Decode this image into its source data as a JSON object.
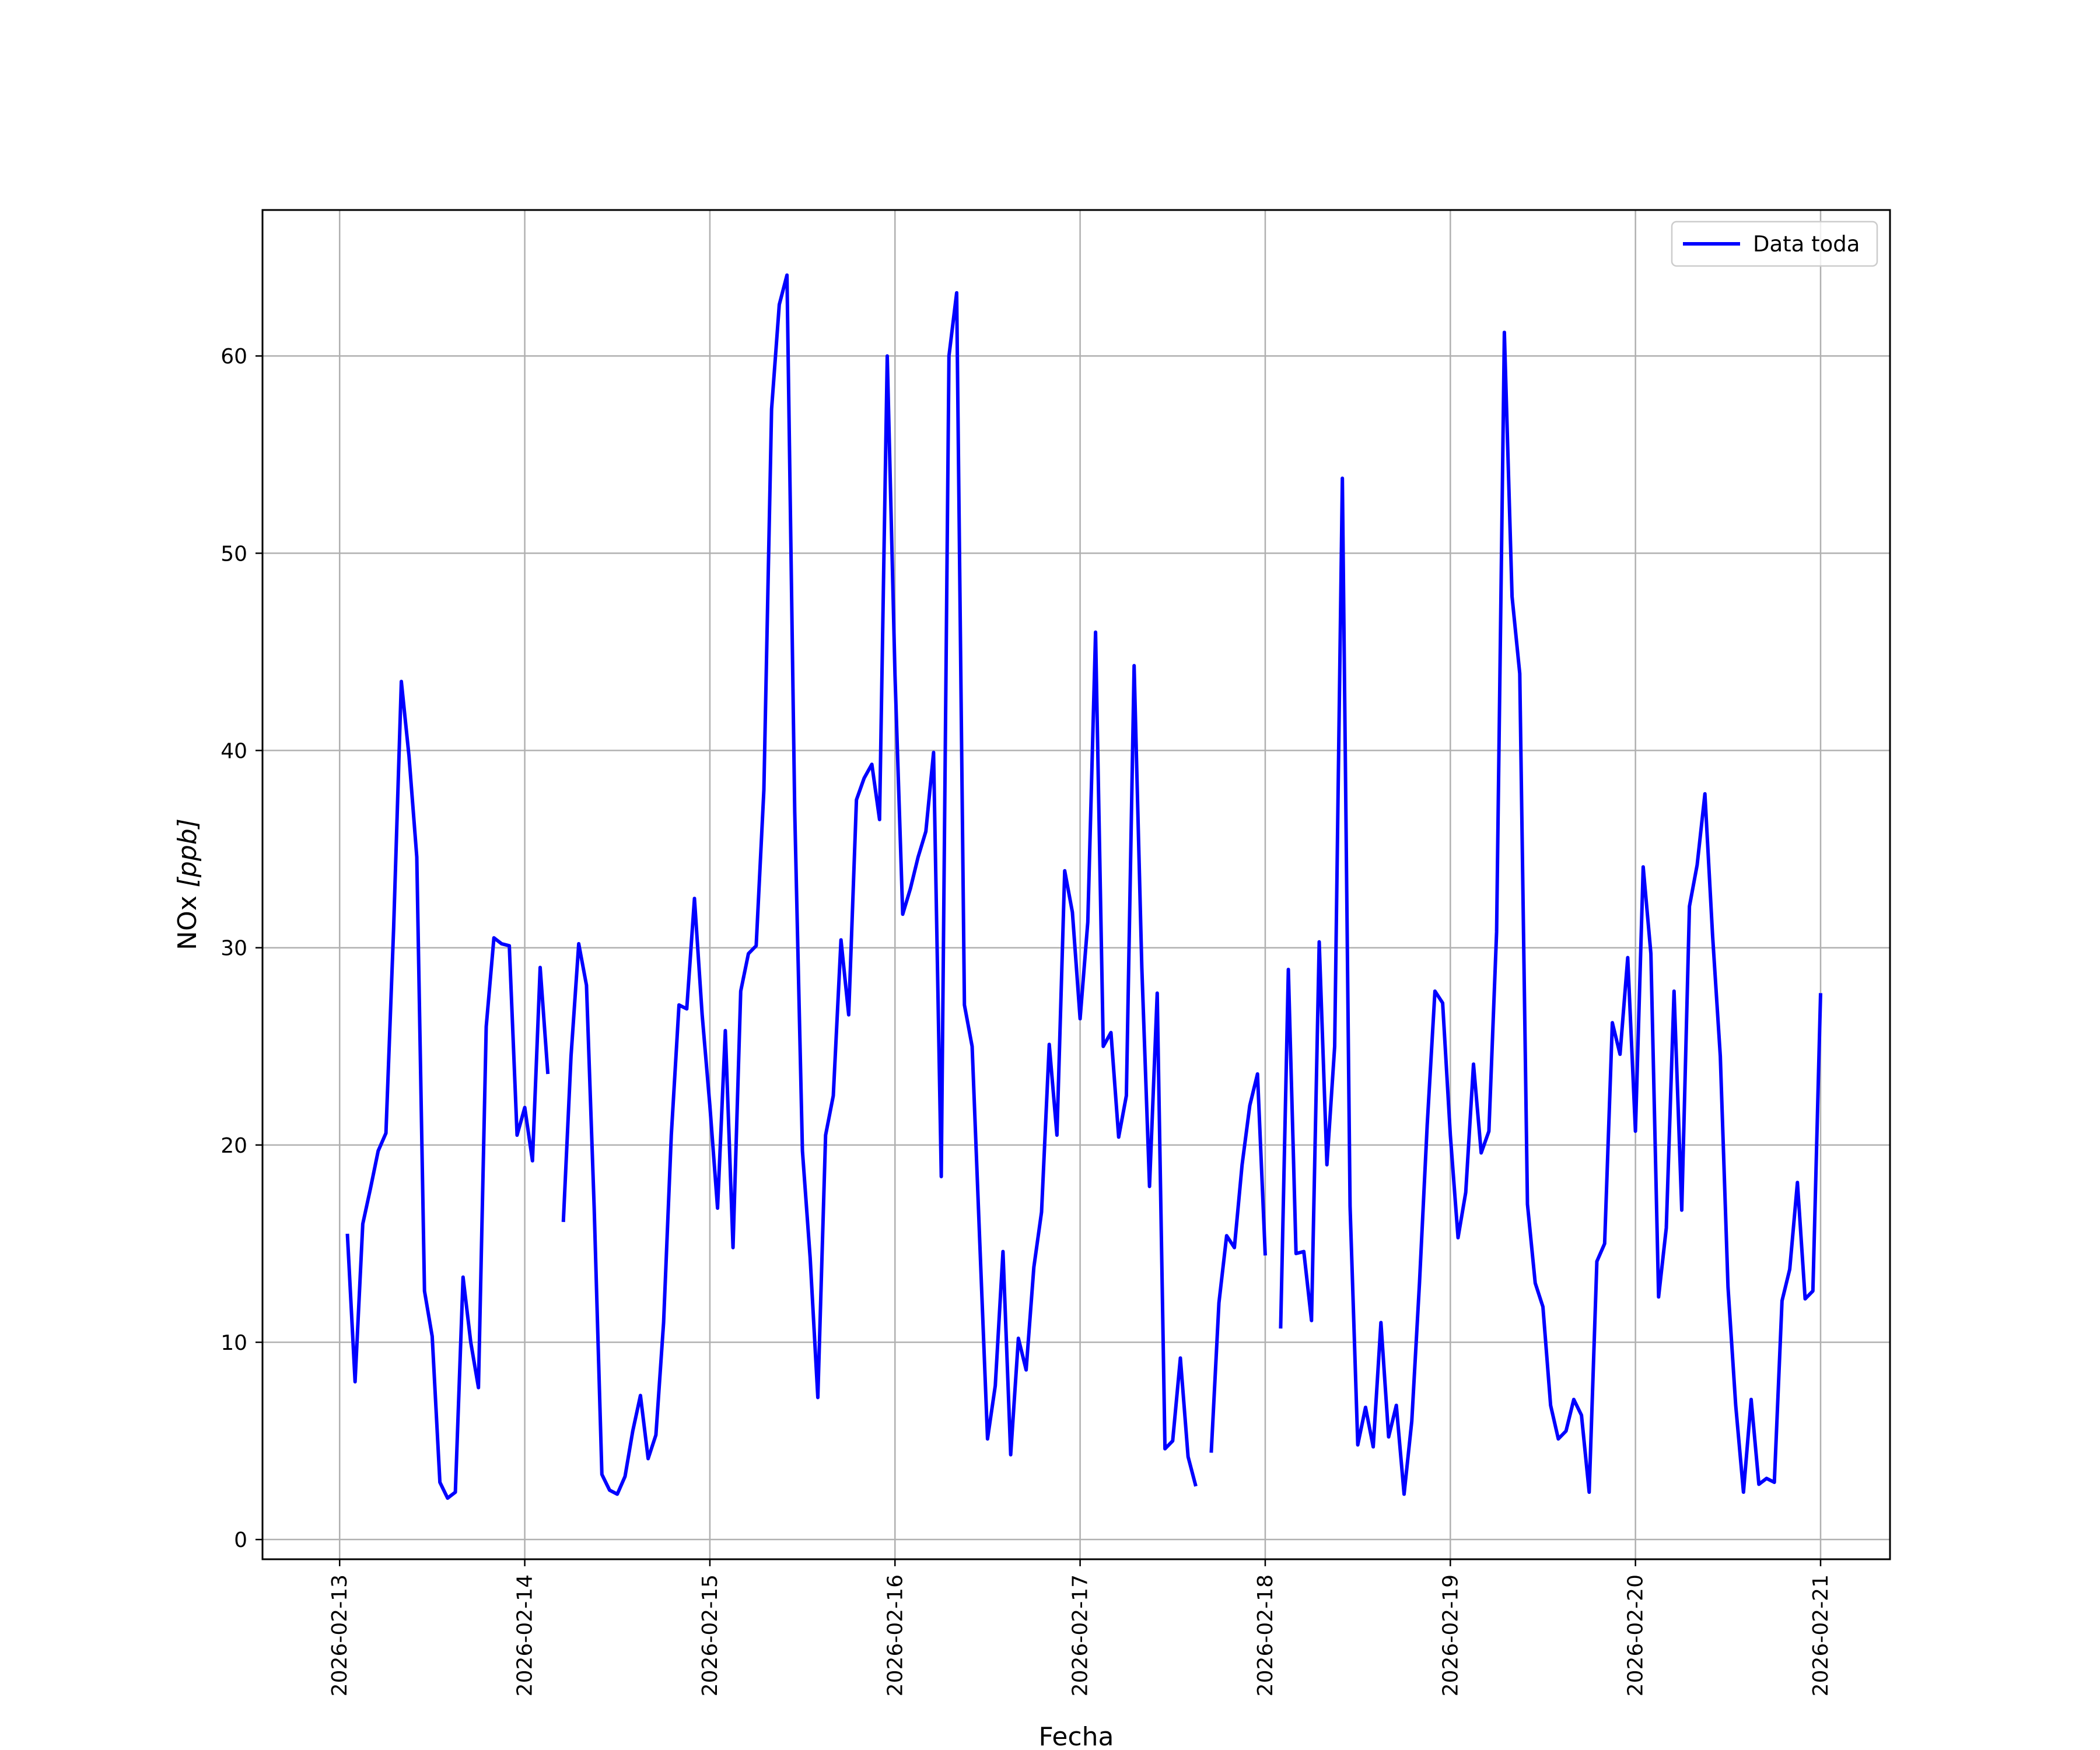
{
  "chart_data": {
    "type": "line",
    "xlabel": "Fecha",
    "ylabel_prefix": "NOx ",
    "ylabel_unit": "[ppb]",
    "x_ticks": [
      "2026-02-13",
      "2026-02-14",
      "2026-02-15",
      "2026-02-16",
      "2026-02-17",
      "2026-02-18",
      "2026-02-19",
      "2026-02-20",
      "2026-02-21"
    ],
    "y_ticks": [
      0,
      10,
      20,
      30,
      40,
      50,
      60
    ],
    "xlim": [
      "2026-02-12T14:00",
      "2026-02-21T09:00"
    ],
    "ylim": [
      -1,
      67.4
    ],
    "grid": true,
    "legend": {
      "position": "top-right",
      "entries": [
        "Data toda"
      ]
    },
    "series": [
      {
        "name": "Data toda",
        "color": "#0000ff",
        "points": [
          [
            "2026-02-13T01:00",
            15.5
          ],
          [
            "2026-02-13T02:00",
            8.0
          ],
          [
            "2026-02-13T03:00",
            16.0
          ],
          [
            "2026-02-13T04:00",
            17.8
          ],
          [
            "2026-02-13T05:00",
            19.7
          ],
          [
            "2026-02-13T06:00",
            20.6
          ],
          [
            "2026-02-13T07:00",
            31.0
          ],
          [
            "2026-02-13T08:00",
            43.5
          ],
          [
            "2026-02-13T09:00",
            39.7
          ],
          [
            "2026-02-13T10:00",
            34.6
          ],
          [
            "2026-02-13T11:00",
            12.6
          ],
          [
            "2026-02-13T12:00",
            10.3
          ],
          [
            "2026-02-13T13:00",
            2.9
          ],
          [
            "2026-02-13T14:00",
            2.1
          ],
          [
            "2026-02-13T15:00",
            2.4
          ],
          [
            "2026-02-13T16:00",
            13.3
          ],
          [
            "2026-02-13T17:00",
            10.0
          ],
          [
            "2026-02-13T18:00",
            7.7
          ],
          [
            "2026-02-13T19:00",
            26.0
          ],
          [
            "2026-02-13T20:00",
            30.5
          ],
          [
            "2026-02-13T21:00",
            30.2
          ],
          [
            "2026-02-13T22:00",
            30.1
          ],
          [
            "2026-02-13T23:00",
            20.5
          ],
          [
            "2026-02-14T00:00",
            21.9
          ],
          [
            "2026-02-14T01:00",
            19.2
          ],
          [
            "2026-02-14T02:00",
            29.0
          ],
          [
            "2026-02-14T03:00",
            23.6
          ],
          null,
          [
            "2026-02-14T05:00",
            16.1
          ],
          [
            "2026-02-14T06:00",
            24.5
          ],
          [
            "2026-02-14T07:00",
            30.2
          ],
          [
            "2026-02-14T08:00",
            28.1
          ],
          [
            "2026-02-14T09:00",
            16.8
          ],
          [
            "2026-02-14T10:00",
            3.3
          ],
          [
            "2026-02-14T11:00",
            2.5
          ],
          [
            "2026-02-14T12:00",
            2.3
          ],
          [
            "2026-02-14T13:00",
            3.2
          ],
          [
            "2026-02-14T14:00",
            5.5
          ],
          [
            "2026-02-14T15:00",
            7.3
          ],
          [
            "2026-02-14T16:00",
            4.1
          ],
          [
            "2026-02-14T17:00",
            5.3
          ],
          [
            "2026-02-14T18:00",
            11.0
          ],
          [
            "2026-02-14T19:00",
            20.5
          ],
          [
            "2026-02-14T20:00",
            27.1
          ],
          [
            "2026-02-14T21:00",
            26.9
          ],
          [
            "2026-02-14T22:00",
            32.5
          ],
          [
            "2026-02-14T23:00",
            26.6
          ],
          [
            "2026-02-15T00:00",
            22.0
          ],
          [
            "2026-02-15T01:00",
            16.8
          ],
          [
            "2026-02-15T02:00",
            25.8
          ],
          [
            "2026-02-15T03:00",
            14.8
          ],
          [
            "2026-02-15T04:00",
            27.8
          ],
          [
            "2026-02-15T05:00",
            29.7
          ],
          [
            "2026-02-15T06:00",
            30.1
          ],
          [
            "2026-02-15T07:00",
            38.0
          ],
          [
            "2026-02-15T08:00",
            57.3
          ],
          [
            "2026-02-15T09:00",
            62.6
          ],
          [
            "2026-02-15T10:00",
            64.1
          ],
          [
            "2026-02-15T11:00",
            36.9
          ],
          [
            "2026-02-15T12:00",
            19.7
          ],
          [
            "2026-02-15T13:00",
            14.3
          ],
          [
            "2026-02-15T14:00",
            7.2
          ],
          [
            "2026-02-15T15:00",
            20.5
          ],
          [
            "2026-02-15T16:00",
            22.5
          ],
          [
            "2026-02-15T17:00",
            30.4
          ],
          [
            "2026-02-15T18:00",
            26.6
          ],
          [
            "2026-02-15T19:00",
            37.5
          ],
          [
            "2026-02-15T20:00",
            38.6
          ],
          [
            "2026-02-15T21:00",
            39.3
          ],
          [
            "2026-02-15T22:00",
            36.5
          ],
          [
            "2026-02-15T23:00",
            60.0
          ],
          [
            "2026-02-16T00:00",
            43.8
          ],
          [
            "2026-02-16T01:00",
            31.7
          ],
          [
            "2026-02-16T02:00",
            33.0
          ],
          [
            "2026-02-16T03:00",
            34.6
          ],
          [
            "2026-02-16T04:00",
            35.9
          ],
          [
            "2026-02-16T05:00",
            39.9
          ],
          [
            "2026-02-16T06:00",
            18.4
          ],
          [
            "2026-02-16T07:00",
            60.0
          ],
          [
            "2026-02-16T08:00",
            63.2
          ],
          [
            "2026-02-16T09:00",
            27.1
          ],
          [
            "2026-02-16T10:00",
            25.0
          ],
          [
            "2026-02-16T11:00",
            15.0
          ],
          [
            "2026-02-16T12:00",
            5.1
          ],
          [
            "2026-02-16T13:00",
            7.8
          ],
          [
            "2026-02-16T14:00",
            14.6
          ],
          [
            "2026-02-16T15:00",
            4.3
          ],
          [
            "2026-02-16T16:00",
            10.2
          ],
          [
            "2026-02-16T17:00",
            8.6
          ],
          [
            "2026-02-16T18:00",
            13.8
          ],
          [
            "2026-02-16T19:00",
            16.6
          ],
          [
            "2026-02-16T20:00",
            25.1
          ],
          [
            "2026-02-16T21:00",
            20.5
          ],
          [
            "2026-02-16T22:00",
            33.9
          ],
          [
            "2026-02-16T23:00",
            31.8
          ],
          [
            "2026-02-17T00:00",
            26.4
          ],
          [
            "2026-02-17T01:00",
            31.3
          ],
          [
            "2026-02-17T02:00",
            46.0
          ],
          [
            "2026-02-17T03:00",
            25.0
          ],
          [
            "2026-02-17T04:00",
            25.7
          ],
          [
            "2026-02-17T05:00",
            20.4
          ],
          [
            "2026-02-17T06:00",
            22.5
          ],
          [
            "2026-02-17T07:00",
            44.3
          ],
          [
            "2026-02-17T08:00",
            29.0
          ],
          [
            "2026-02-17T09:00",
            17.9
          ],
          [
            "2026-02-17T10:00",
            27.7
          ],
          [
            "2026-02-17T11:00",
            4.6
          ],
          [
            "2026-02-17T12:00",
            5.0
          ],
          [
            "2026-02-17T13:00",
            9.2
          ],
          [
            "2026-02-17T14:00",
            4.2
          ],
          [
            "2026-02-17T15:00",
            2.7
          ],
          null,
          [
            "2026-02-17T17:00",
            4.4
          ],
          [
            "2026-02-17T18:00",
            12.0
          ],
          [
            "2026-02-17T19:00",
            15.4
          ],
          [
            "2026-02-17T20:00",
            14.8
          ],
          [
            "2026-02-17T21:00",
            19.0
          ],
          [
            "2026-02-17T22:00",
            22.0
          ],
          [
            "2026-02-17T23:00",
            23.6
          ],
          [
            "2026-02-18T00:00",
            14.4
          ],
          null,
          [
            "2026-02-18T02:00",
            10.7
          ],
          [
            "2026-02-18T03:00",
            28.9
          ],
          [
            "2026-02-18T04:00",
            14.5
          ],
          [
            "2026-02-18T05:00",
            14.6
          ],
          [
            "2026-02-18T06:00",
            11.1
          ],
          [
            "2026-02-18T07:00",
            30.3
          ],
          [
            "2026-02-18T08:00",
            19.0
          ],
          [
            "2026-02-18T09:00",
            25.0
          ],
          [
            "2026-02-18T10:00",
            53.8
          ],
          [
            "2026-02-18T11:00",
            16.9
          ],
          [
            "2026-02-18T12:00",
            4.8
          ],
          [
            "2026-02-18T13:00",
            6.7
          ],
          [
            "2026-02-18T14:00",
            4.7
          ],
          [
            "2026-02-18T15:00",
            11.0
          ],
          [
            "2026-02-18T16:00",
            5.2
          ],
          [
            "2026-02-18T17:00",
            6.8
          ],
          [
            "2026-02-18T18:00",
            2.3
          ],
          [
            "2026-02-18T19:00",
            6.0
          ],
          [
            "2026-02-18T20:00",
            13.0
          ],
          [
            "2026-02-18T21:00",
            21.0
          ],
          [
            "2026-02-18T22:00",
            27.8
          ],
          [
            "2026-02-18T23:00",
            27.2
          ],
          [
            "2026-02-19T00:00",
            20.5
          ],
          [
            "2026-02-19T01:00",
            15.3
          ],
          [
            "2026-02-19T02:00",
            17.6
          ],
          [
            "2026-02-19T03:00",
            24.1
          ],
          [
            "2026-02-19T04:00",
            19.6
          ],
          [
            "2026-02-19T05:00",
            20.7
          ],
          [
            "2026-02-19T06:00",
            30.8
          ],
          [
            "2026-02-19T07:00",
            61.2
          ],
          [
            "2026-02-19T08:00",
            47.8
          ],
          [
            "2026-02-19T09:00",
            43.9
          ],
          [
            "2026-02-19T10:00",
            17.0
          ],
          [
            "2026-02-19T11:00",
            13.0
          ],
          [
            "2026-02-19T12:00",
            11.8
          ],
          [
            "2026-02-19T13:00",
            6.8
          ],
          [
            "2026-02-19T14:00",
            5.1
          ],
          [
            "2026-02-19T15:00",
            5.5
          ],
          [
            "2026-02-19T16:00",
            7.1
          ],
          [
            "2026-02-19T17:00",
            6.3
          ],
          [
            "2026-02-19T18:00",
            2.4
          ],
          [
            "2026-02-19T19:00",
            14.1
          ],
          [
            "2026-02-19T20:00",
            15.0
          ],
          [
            "2026-02-19T21:00",
            26.2
          ],
          [
            "2026-02-19T22:00",
            24.6
          ],
          [
            "2026-02-19T23:00",
            29.5
          ],
          [
            "2026-02-20T00:00",
            20.7
          ],
          [
            "2026-02-20T01:00",
            34.1
          ],
          [
            "2026-02-20T02:00",
            29.7
          ],
          [
            "2026-02-20T03:00",
            12.3
          ],
          [
            "2026-02-20T04:00",
            15.8
          ],
          [
            "2026-02-20T05:00",
            27.8
          ],
          [
            "2026-02-20T06:00",
            16.7
          ],
          [
            "2026-02-20T07:00",
            32.1
          ],
          [
            "2026-02-20T08:00",
            34.2
          ],
          [
            "2026-02-20T09:00",
            37.8
          ],
          [
            "2026-02-20T10:00",
            30.6
          ],
          [
            "2026-02-20T11:00",
            24.5
          ],
          [
            "2026-02-20T12:00",
            12.8
          ],
          [
            "2026-02-20T13:00",
            6.8
          ],
          [
            "2026-02-20T14:00",
            2.4
          ],
          [
            "2026-02-20T15:00",
            7.1
          ],
          [
            "2026-02-20T16:00",
            2.8
          ],
          [
            "2026-02-20T17:00",
            3.1
          ],
          [
            "2026-02-20T18:00",
            2.9
          ],
          [
            "2026-02-20T19:00",
            12.1
          ],
          [
            "2026-02-20T20:00",
            13.7
          ],
          [
            "2026-02-20T21:00",
            18.1
          ],
          [
            "2026-02-20T22:00",
            12.2
          ],
          [
            "2026-02-20T23:00",
            12.6
          ],
          [
            "2026-02-21T00:00",
            27.7
          ]
        ]
      }
    ]
  }
}
